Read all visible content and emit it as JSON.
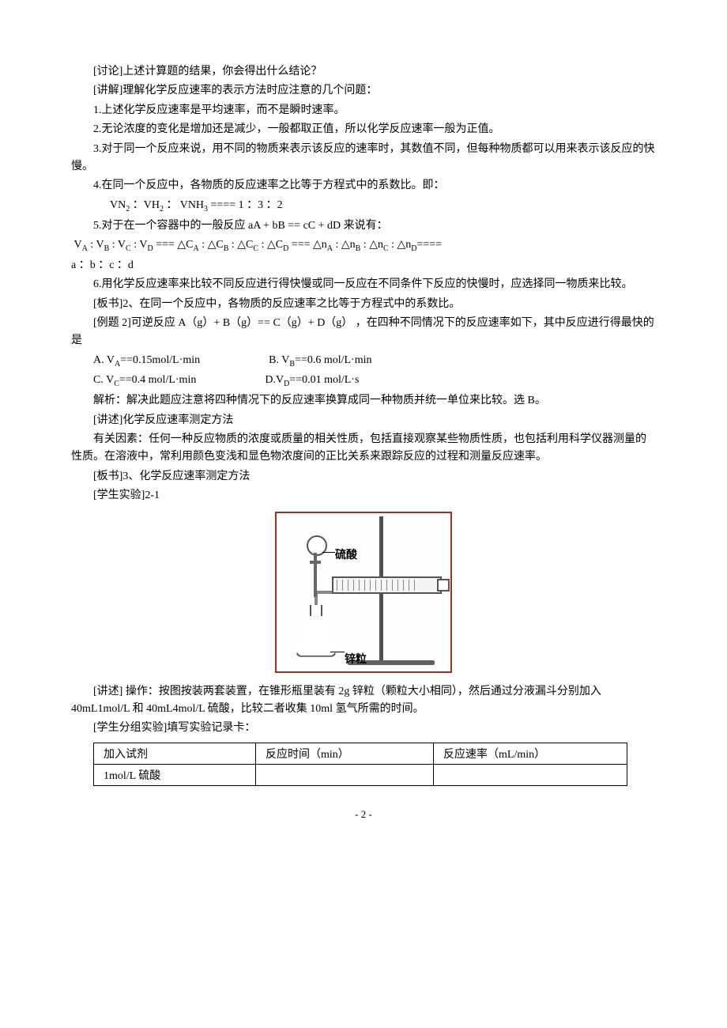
{
  "p1": "[讨论]上述计算题的结果，你会得出什么结论？",
  "p2": "[讲解]理解化学反应速率的表示方法时应注意的几个问题：",
  "p3": "1.上述化学反应速率是平均速率，而不是瞬时速率。",
  "p4": "2.无论浓度的变化是增加还是减少，一般都取正值，所以化学反应速率一般为正值。",
  "p5": "3.对于同一个反应来说，用不同的物质来表示该反应的速率时，其数值不同，但每种物质都可以用来表示该反应的快慢。",
  "p6": "4.在同一个反应中，各物质的反应速率之比等于方程式中的系数比。即：",
  "ratio1_pre": "VN",
  "ratio1_n2": "2",
  "ratio1_mid1": " ：VH",
  "ratio1_h2": "2",
  "ratio1_mid2": "  ： VNH",
  "ratio1_nh3": "3",
  "ratio1_tail": "  ====  1 ：3 ：2",
  "p7": "5.对于在一个容器中的一般反应  aA + bB == cC + dD 来说有：",
  "ratio2": "V",
  "ratio2_full_a": "A",
  "ratio2_s1": " : V",
  "ratio2_full_b": "B",
  "ratio2_s2": "  : V",
  "ratio2_full_c": "C",
  "ratio2_s3": "  : V",
  "ratio2_full_d": "D",
  "ratio2_eq1": " ===  △C",
  "ratio2_s4": " : △C",
  "ratio2_s5": "  : △C",
  "ratio2_s6": "  : △C",
  "ratio2_eq2": " ===  △n",
  "ratio2_s7": " : △n",
  "ratio2_s8": "  : △n",
  "ratio2_s9": " : △n",
  "ratio2_eq3": "====",
  "ratio2_line2": "a ：b ：c ：d",
  "p8": "6.用化学反应速率来比较不同反应进行得快慢或同一反应在不同条件下反应的快慢时，应选择同一物质来比较。",
  "p9": "[板书]2、在同一个反应中，各物质的反应速率之比等于方程式中的系数比。",
  "p10": "[例题 2]可逆反应 A（g）+ B（g）== C（g）+ D（g） ，在四种不同情况下的反应速率如下，其中反应进行得最快的是",
  "optA_pre": "A. V",
  "optA_sub": "A",
  "optA_tail": "==0.15mol/L·min",
  "optB_pre": "B. V",
  "optB_sub": "B",
  "optB_tail": "==0.6 mol/L·min",
  "optC_pre": "C. V",
  "optC_sub": "C",
  "optC_tail": "==0.4 mol/L·min",
  "optD_pre": "D.V",
  "optD_sub": "D",
  "optD_tail": "==0.01 mol/L·s",
  "p11": "解析：解决此题应注意将四种情况下的反应速率换算成同一种物质并统一单位来比较。选 B。",
  "p12": "[讲述]化学反应速率测定方法",
  "p13": "有关因素：任何一种反应物质的浓度或质量的相关性质，包括直接观察某些物质性质，也包括利用科学仪器测量的性质。在溶液中，常利用颜色变浅和显色物浓度间的正比关系来跟踪反应的过程和测量反应速率。",
  "p14": "[板书]3、化学反应速率测定方法",
  "p15": "[学生实验]2-1",
  "fig_label_acid": "硫酸",
  "fig_label_zinc": "锌粒",
  "p16": "[讲述] 操作：按图按装两套装置，在锥形瓶里装有 2g 锌粒（颗粒大小相同），然后通过分液漏斗分别加入 40mL1mol/L 和 40mL4mol/L 硫酸，比较二者收集 10ml 氢气所需的时间。",
  "p17": "[学生分组实验]填写实验记录卡：",
  "table": {
    "headers": [
      "加入试剂",
      "反应时间（min）",
      "反应速率（mL/min）"
    ],
    "rows": [
      [
        "1mol/L 硫酸",
        "",
        ""
      ]
    ],
    "col_widths": [
      "180px",
      "200px",
      "220px"
    ]
  },
  "page_number": "- 2 -",
  "style": {
    "font_family": "SimSun",
    "font_size_pt": 14,
    "text_color": "#000000",
    "background_color": "#ffffff",
    "figure_border_color": "#a03020",
    "table_border_color": "#000000"
  }
}
